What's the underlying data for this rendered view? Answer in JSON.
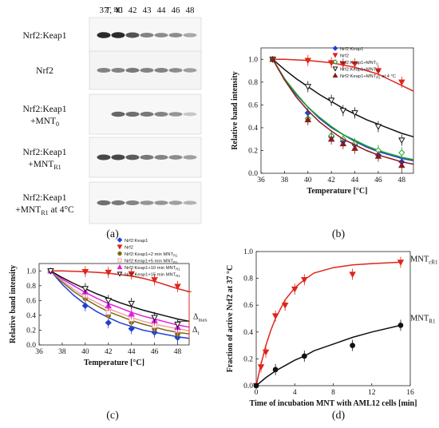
{
  "panel_a": {
    "header_t": "T,",
    "header_unit": "°C",
    "temperatures": [
      "37",
      "40",
      "42",
      "43",
      "44",
      "46",
      "48"
    ],
    "row_labels": [
      [
        "Nrf2:Keap1"
      ],
      [
        "Nrf2"
      ],
      [
        "Nrf2:Keap1",
        "+MNT",
        "0"
      ],
      [
        "Nrf2:Keap1",
        "+MNT",
        "R1"
      ],
      [
        "Nrf2:Keap1",
        "+MNT",
        "R1",
        " at 4°C"
      ]
    ],
    "band_intensity": [
      [
        1.0,
        1.0,
        0.8,
        0.55,
        0.5,
        0.5,
        0.35
      ],
      [
        0.55,
        0.55,
        0.6,
        0.55,
        0.55,
        0.5,
        0.4
      ],
      [
        0.0,
        0.7,
        0.65,
        0.6,
        0.55,
        0.45,
        0.2
      ],
      [
        0.85,
        0.85,
        0.75,
        0.6,
        0.55,
        0.5,
        0.4
      ],
      [
        0.65,
        0.6,
        0.55,
        0.45,
        0.45,
        0.4,
        0.3
      ]
    ],
    "caption": "(a)"
  },
  "chart_data": [
    {
      "id": "b",
      "type": "scatter",
      "caption": "(b)",
      "xlabel": "Temperature [°C]",
      "ylabel": "Relative band intensity",
      "xlim": [
        36,
        49
      ],
      "ylim": [
        0,
        1.1
      ],
      "xticks": [
        36,
        38,
        40,
        42,
        44,
        46,
        48
      ],
      "yticks": [
        0.0,
        0.2,
        0.4,
        0.6,
        0.8,
        1.0
      ],
      "legend_position": "top-right",
      "series": [
        {
          "name": "Nrf2:Keap1",
          "color": "#1f3fd6",
          "marker": "diamond-filled",
          "x": [
            37,
            40,
            42,
            43,
            44,
            46,
            48
          ],
          "y": [
            1.0,
            0.53,
            0.32,
            0.28,
            0.25,
            0.16,
            0.1
          ],
          "fit": [
            [
              37,
              1.0
            ],
            [
              38,
              0.83
            ],
            [
              39,
              0.69
            ],
            [
              40,
              0.58
            ],
            [
              41,
              0.48
            ],
            [
              42,
              0.4
            ],
            [
              43,
              0.34
            ],
            [
              44,
              0.28
            ],
            [
              45,
              0.23
            ],
            [
              46,
              0.19
            ],
            [
              47,
              0.16
            ],
            [
              48,
              0.13
            ],
            [
              49,
              0.11
            ]
          ]
        },
        {
          "name": "Nrf2",
          "color": "#e0251b",
          "marker": "triangle-down-filled",
          "x": [
            37,
            40,
            42,
            43,
            44,
            46,
            48
          ],
          "y": [
            1.0,
            0.99,
            0.97,
            0.96,
            0.96,
            0.9,
            0.8
          ],
          "fit": [
            [
              37,
              1.0
            ],
            [
              38,
              1.0
            ],
            [
              39,
              0.995
            ],
            [
              40,
              0.99
            ],
            [
              41,
              0.98
            ],
            [
              42,
              0.97
            ],
            [
              43,
              0.95
            ],
            [
              44,
              0.93
            ],
            [
              45,
              0.9
            ],
            [
              46,
              0.87
            ],
            [
              47,
              0.82
            ],
            [
              48,
              0.77
            ],
            [
              49,
              0.72
            ]
          ]
        },
        {
          "name": "Nrf2:Keap1+MNT",
          "name_sub": "0",
          "color": "#22a022",
          "marker": "diamond-open",
          "x": [
            37,
            40,
            42,
            43,
            44,
            46,
            48
          ],
          "y": [
            1.0,
            0.48,
            0.33,
            0.3,
            0.26,
            0.2,
            0.18
          ],
          "fit": [
            [
              37,
              1.0
            ],
            [
              38,
              0.83
            ],
            [
              39,
              0.7
            ],
            [
              40,
              0.58
            ],
            [
              41,
              0.49
            ],
            [
              42,
              0.41
            ],
            [
              43,
              0.34
            ],
            [
              44,
              0.29
            ],
            [
              45,
              0.24
            ],
            [
              46,
              0.2
            ],
            [
              47,
              0.17
            ],
            [
              48,
              0.14
            ],
            [
              49,
              0.12
            ]
          ]
        },
        {
          "name": "Nrf2:Keap1+MNT",
          "name_sub": "R1",
          "color": "#111111",
          "marker": "triangle-down-open",
          "x": [
            37,
            40,
            42,
            43,
            44,
            46,
            48
          ],
          "y": [
            1.0,
            0.76,
            0.64,
            0.55,
            0.53,
            0.41,
            0.29
          ],
          "fit": [
            [
              37,
              1.0
            ],
            [
              38,
              0.91
            ],
            [
              39,
              0.83
            ],
            [
              40,
              0.76
            ],
            [
              41,
              0.69
            ],
            [
              42,
              0.63
            ],
            [
              43,
              0.57
            ],
            [
              44,
              0.52
            ],
            [
              45,
              0.47
            ],
            [
              46,
              0.43
            ],
            [
              47,
              0.39
            ],
            [
              48,
              0.35
            ],
            [
              49,
              0.32
            ]
          ]
        },
        {
          "name": "Nrf2:Keap1+MNT",
          "name_sub": "R1",
          "name_suffix": " at 4 °C",
          "color": "#8b1a1a",
          "marker": "triangle-up-filled",
          "x": [
            37,
            40,
            42,
            43,
            44,
            46,
            48
          ],
          "y": [
            1.0,
            0.47,
            0.3,
            0.26,
            0.22,
            0.15,
            0.07
          ],
          "fit": [
            [
              37,
              1.0
            ],
            [
              38,
              0.82
            ],
            [
              39,
              0.67
            ],
            [
              40,
              0.55
            ],
            [
              41,
              0.45
            ],
            [
              42,
              0.37
            ],
            [
              43,
              0.3
            ],
            [
              44,
              0.25
            ],
            [
              45,
              0.2
            ],
            [
              46,
              0.16
            ],
            [
              47,
              0.13
            ],
            [
              48,
              0.1
            ],
            [
              49,
              0.08
            ]
          ]
        }
      ]
    },
    {
      "id": "c",
      "type": "scatter",
      "caption": "(c)",
      "xlabel": "Temperature [°C]",
      "ylabel": "Relative band intensity",
      "xlim": [
        36,
        49
      ],
      "ylim": [
        0,
        1.1
      ],
      "xticks": [
        36,
        38,
        40,
        42,
        44,
        46,
        48
      ],
      "yticks": [
        0.0,
        0.2,
        0.4,
        0.6,
        0.8,
        1.0
      ],
      "legend_position": "top-right",
      "annotations": [
        {
          "text": "Δ",
          "sub": "max",
          "color": "#e0251b"
        },
        {
          "text": "Δ",
          "sub": "t",
          "color": "#111111"
        }
      ],
      "series": [
        {
          "name": "Nrf2:Keap1",
          "color": "#1f3fd6",
          "marker": "diamond-filled",
          "x": [
            37,
            40,
            42,
            44,
            46,
            48
          ],
          "y": [
            1.0,
            0.53,
            0.3,
            0.22,
            0.17,
            0.1
          ],
          "fit": [
            [
              37,
              1.0
            ],
            [
              38,
              0.82
            ],
            [
              39,
              0.67
            ],
            [
              40,
              0.55
            ],
            [
              41,
              0.45
            ],
            [
              42,
              0.37
            ],
            [
              43,
              0.3
            ],
            [
              44,
              0.25
            ],
            [
              45,
              0.2
            ],
            [
              46,
              0.17
            ],
            [
              47,
              0.14
            ],
            [
              48,
              0.11
            ],
            [
              49,
              0.09
            ]
          ]
        },
        {
          "name": "Nrf2",
          "color": "#e0251b",
          "marker": "triangle-down-filled",
          "x": [
            37,
            40,
            42,
            44,
            46,
            48
          ],
          "y": [
            1.0,
            0.99,
            0.98,
            0.96,
            0.88,
            0.79
          ],
          "fit": [
            [
              37,
              1.0
            ],
            [
              38,
              1.0
            ],
            [
              39,
              0.995
            ],
            [
              40,
              0.99
            ],
            [
              41,
              0.98
            ],
            [
              42,
              0.97
            ],
            [
              43,
              0.95
            ],
            [
              44,
              0.93
            ],
            [
              45,
              0.9
            ],
            [
              46,
              0.86
            ],
            [
              47,
              0.81
            ],
            [
              48,
              0.76
            ],
            [
              49,
              0.72
            ]
          ]
        },
        {
          "name": "Nrf2:Keap1+2 min MNT",
          "name_sub": "R1",
          "color": "#7a6a10",
          "marker": "circle-filled",
          "x": [
            37,
            40,
            42,
            44,
            46,
            48
          ],
          "y": [
            1.0,
            0.63,
            0.4,
            0.31,
            0.22,
            0.15
          ],
          "fit": [
            [
              37,
              1.0
            ],
            [
              38,
              0.85
            ],
            [
              39,
              0.72
            ],
            [
              40,
              0.62
            ],
            [
              41,
              0.53
            ],
            [
              42,
              0.45
            ],
            [
              43,
              0.39
            ],
            [
              44,
              0.33
            ],
            [
              45,
              0.28
            ],
            [
              46,
              0.24
            ],
            [
              47,
              0.2
            ],
            [
              48,
              0.17
            ],
            [
              49,
              0.15
            ]
          ]
        },
        {
          "name": "Nrf2:Keap1+5 min MNT",
          "name_sub": "R1",
          "color": "#f2a0a0",
          "marker": "square-open",
          "x": [
            37,
            40,
            42,
            44,
            46,
            48
          ],
          "y": [
            1.0,
            0.67,
            0.44,
            0.35,
            0.26,
            0.2
          ],
          "fit": [
            [
              37,
              1.0
            ],
            [
              38,
              0.87
            ],
            [
              39,
              0.75
            ],
            [
              40,
              0.65
            ],
            [
              41,
              0.57
            ],
            [
              42,
              0.49
            ],
            [
              43,
              0.43
            ],
            [
              44,
              0.37
            ],
            [
              45,
              0.32
            ],
            [
              46,
              0.28
            ],
            [
              47,
              0.25
            ],
            [
              48,
              0.22
            ],
            [
              49,
              0.19
            ]
          ]
        },
        {
          "name": "Nrf2:Keap1+10 min MNT",
          "name_sub": "R1",
          "color": "#e020e0",
          "marker": "triangle-up-filled",
          "x": [
            37,
            40,
            42,
            44,
            46,
            48
          ],
          "y": [
            1.0,
            0.72,
            0.53,
            0.42,
            0.33,
            0.24
          ],
          "fit": [
            [
              37,
              1.0
            ],
            [
              38,
              0.89
            ],
            [
              39,
              0.8
            ],
            [
              40,
              0.71
            ],
            [
              41,
              0.63
            ],
            [
              42,
              0.56
            ],
            [
              43,
              0.5
            ],
            [
              44,
              0.44
            ],
            [
              45,
              0.39
            ],
            [
              46,
              0.35
            ],
            [
              47,
              0.31
            ],
            [
              48,
              0.27
            ],
            [
              49,
              0.24
            ]
          ]
        },
        {
          "name": "Nrf2:Keap1+15 min MNT",
          "name_sub": "R1",
          "color": "#111111",
          "marker": "triangle-down-open",
          "x": [
            37,
            40,
            42,
            44,
            46,
            48
          ],
          "y": [
            1.0,
            0.76,
            0.6,
            0.56,
            0.37,
            0.28
          ],
          "fit": [
            [
              37,
              1.0
            ],
            [
              38,
              0.91
            ],
            [
              39,
              0.83
            ],
            [
              40,
              0.76
            ],
            [
              41,
              0.69
            ],
            [
              42,
              0.63
            ],
            [
              43,
              0.57
            ],
            [
              44,
              0.52
            ],
            [
              45,
              0.47
            ],
            [
              46,
              0.43
            ],
            [
              47,
              0.39
            ],
            [
              48,
              0.35
            ],
            [
              49,
              0.32
            ]
          ]
        }
      ]
    },
    {
      "id": "d",
      "type": "scatter",
      "caption": "(d)",
      "xlabel": "Time of incubation MNT with AML12 cells [min]",
      "ylabel": "Fraction of active Nrf2 at 37 °C",
      "xlim": [
        0,
        16
      ],
      "ylim": [
        0,
        1.0
      ],
      "xticks": [
        0,
        4,
        8,
        12,
        16
      ],
      "yticks": [
        0.0,
        0.2,
        0.4,
        0.6,
        0.8,
        1.0
      ],
      "series": [
        {
          "name": "MNT",
          "name_sub": "cR1",
          "label_position": "right",
          "color": "#e0251b",
          "marker": "triangle-down-filled",
          "x": [
            0,
            0.5,
            1,
            2,
            3,
            4,
            5,
            10,
            15
          ],
          "y": [
            0.0,
            0.14,
            0.25,
            0.52,
            0.6,
            0.72,
            0.79,
            0.83,
            0.92
          ],
          "fit": [
            [
              0,
              0.0
            ],
            [
              0.5,
              0.16
            ],
            [
              1,
              0.3
            ],
            [
              1.5,
              0.41
            ],
            [
              2,
              0.5
            ],
            [
              3,
              0.64
            ],
            [
              4,
              0.73
            ],
            [
              5,
              0.79
            ],
            [
              6,
              0.84
            ],
            [
              8,
              0.88
            ],
            [
              10,
              0.9
            ],
            [
              12,
              0.91
            ],
            [
              15,
              0.92
            ]
          ]
        },
        {
          "name": "MNT",
          "name_sub": "R1",
          "label_position": "right",
          "color": "#111111",
          "marker": "circle-filled",
          "x": [
            0,
            2,
            5,
            10,
            15
          ],
          "y": [
            0.0,
            0.12,
            0.22,
            0.3,
            0.45
          ],
          "fit": [
            [
              0,
              0.0
            ],
            [
              1,
              0.06
            ],
            [
              2,
              0.11
            ],
            [
              3,
              0.15
            ],
            [
              4,
              0.19
            ],
            [
              5,
              0.22
            ],
            [
              6,
              0.26
            ],
            [
              8,
              0.31
            ],
            [
              10,
              0.36
            ],
            [
              12,
              0.4
            ],
            [
              15,
              0.45
            ]
          ]
        }
      ]
    }
  ]
}
